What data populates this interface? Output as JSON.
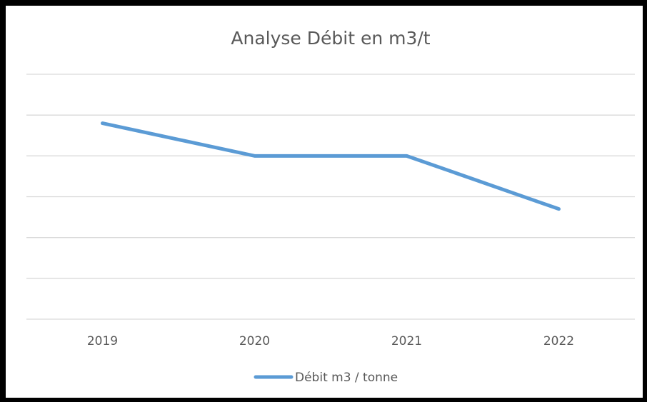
{
  "chart_data": {
    "type": "line",
    "title": "Analyse Débit en m3/t",
    "categories": [
      "2019",
      "2020",
      "2021",
      "2022"
    ],
    "series": [
      {
        "name": "Débit m3 / tonne",
        "color": "#5b9bd5",
        "values": [
          4.8,
          4.0,
          4.0,
          2.7
        ]
      }
    ],
    "ylim": [
      0,
      6
    ],
    "yticks": [
      0,
      1,
      2,
      3,
      4,
      5,
      6
    ],
    "grid": true,
    "legend": "bottom"
  }
}
